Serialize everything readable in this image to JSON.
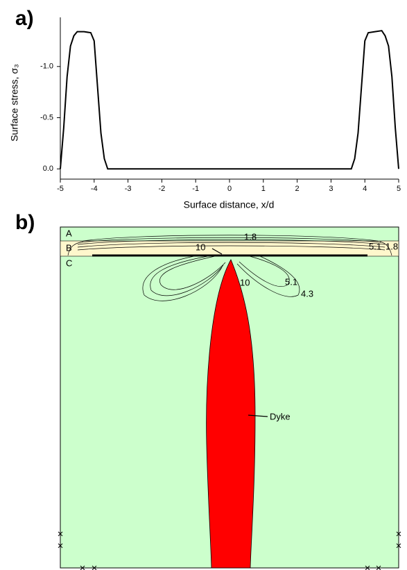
{
  "panel_labels": [
    "a)",
    "b)"
  ],
  "chart_data": {
    "type": "line",
    "x_label": "Surface distance, x/d",
    "y_label": "Surface stress, σ₃",
    "x": [
      -5,
      -4.9,
      -4.8,
      -4.7,
      -4.6,
      -4.5,
      -4.3,
      -4.1,
      -4.0,
      -3.9,
      -3.8,
      -3.7,
      -3.6,
      3.6,
      3.7,
      3.8,
      3.9,
      4.0,
      4.1,
      4.3,
      4.5,
      4.6,
      4.7,
      4.8,
      4.9,
      5
    ],
    "values": [
      0,
      -0.4,
      -0.9,
      -1.2,
      -1.3,
      -1.34,
      -1.34,
      -1.33,
      -1.25,
      -0.8,
      -0.35,
      -0.1,
      0,
      0,
      -0.1,
      -0.35,
      -0.8,
      -1.25,
      -1.33,
      -1.34,
      -1.35,
      -1.3,
      -1.2,
      -0.9,
      -0.4,
      0
    ],
    "color": "#000000",
    "xlim": [
      -5,
      5
    ],
    "xticks": [
      -5,
      -4,
      -3,
      -2,
      -1,
      0,
      1,
      2,
      3,
      4,
      5
    ],
    "ylim": [
      0.1,
      -1.48
    ],
    "yticks": [
      {
        "value": 0,
        "label": "0.0"
      },
      -0.5,
      {
        "value": -1,
        "label": "-1.0"
      }
    ]
  },
  "diagram": {
    "layers": [
      "A",
      "B",
      "C"
    ],
    "contour_labels": [
      "1.8",
      "10",
      "5.1",
      "1.8",
      "10",
      "5.1",
      "4.3"
    ],
    "dyke_label": "Dyke"
  }
}
